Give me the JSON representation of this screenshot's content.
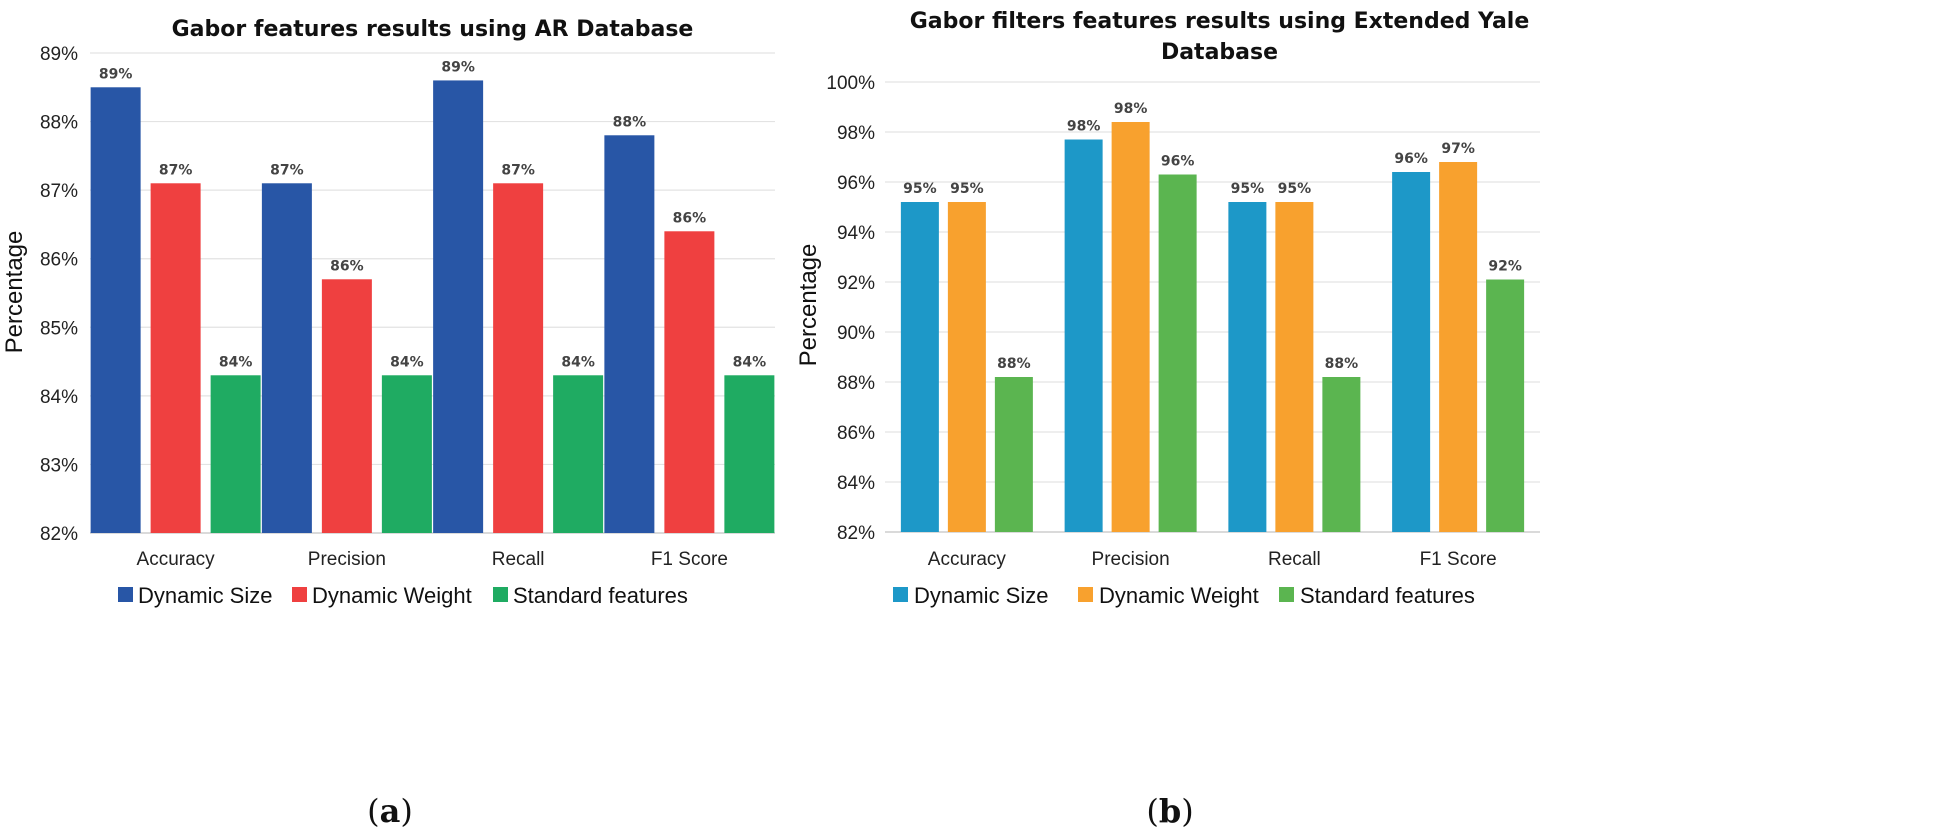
{
  "chart_data": [
    {
      "type": "bar",
      "panel_label": "a",
      "title": "Gabor features results using AR Database",
      "xlabel": "",
      "ylabel": "Percentage",
      "ylim": [
        82,
        89
      ],
      "ytick_step": 1,
      "categories": [
        "Accuracy",
        "Precision",
        "Recall",
        "F1 Score"
      ],
      "series": [
        {
          "name": "Dynamic Size",
          "color": "#2856a6",
          "values": [
            88.5,
            87.1,
            88.6,
            87.8
          ],
          "labels": [
            "89%",
            "87%",
            "89%",
            "88%"
          ]
        },
        {
          "name": "Dynamic Weight",
          "color": "#ef4040",
          "values": [
            87.1,
            85.7,
            87.1,
            86.4
          ],
          "labels": [
            "87%",
            "86%",
            "87%",
            "86%"
          ]
        },
        {
          "name": "Standard features",
          "color": "#1fab62",
          "values": [
            84.3,
            84.3,
            84.3,
            84.3
          ],
          "labels": [
            "84%",
            "84%",
            "84%",
            "84%"
          ]
        }
      ],
      "legend": "bottom",
      "grid": true
    },
    {
      "type": "bar",
      "panel_label": "b",
      "title": "Gabor filters features results using Extended Yale Database",
      "title_lines": [
        "Gabor filters features results using Extended Yale",
        "Database"
      ],
      "xlabel": "",
      "ylabel": "Percentage",
      "ylim": [
        82,
        100
      ],
      "ytick_step": 2,
      "categories": [
        "Accuracy",
        "Precision",
        "Recall",
        "F1 Score"
      ],
      "series": [
        {
          "name": "Dynamic Size",
          "color": "#1d98c8",
          "values": [
            95.2,
            97.7,
            95.2,
            96.4
          ],
          "labels": [
            "95%",
            "98%",
            "95%",
            "96%"
          ]
        },
        {
          "name": "Dynamic Weight",
          "color": "#f8a12e",
          "values": [
            95.2,
            98.4,
            95.2,
            96.8
          ],
          "labels": [
            "95%",
            "98%",
            "95%",
            "97%"
          ]
        },
        {
          "name": "Standard features",
          "color": "#5bb550",
          "values": [
            88.2,
            96.3,
            88.2,
            92.1
          ],
          "labels": [
            "88%",
            "96%",
            "88%",
            "92%"
          ]
        }
      ],
      "legend": "bottom",
      "grid": true
    }
  ]
}
